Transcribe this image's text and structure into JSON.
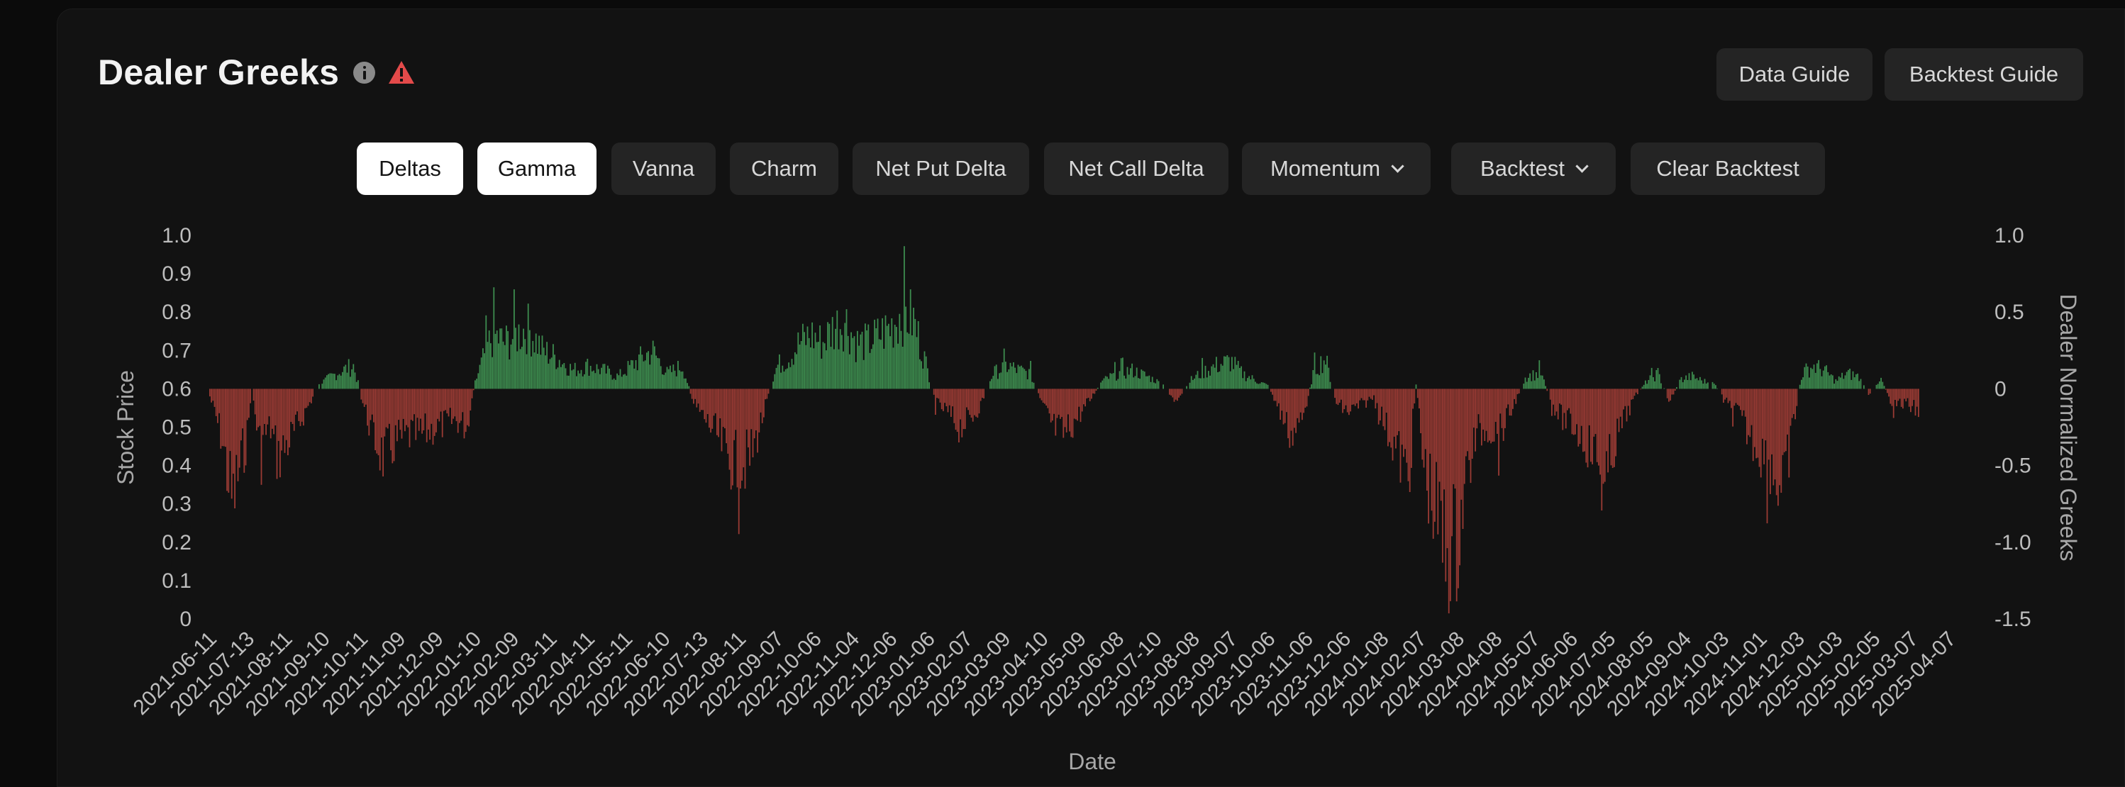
{
  "header": {
    "title": "Dealer Greeks",
    "info_icon": "info-icon",
    "warning_icon": "warning-icon",
    "warning_color": "#e34a4a",
    "data_guide_label": "Data Guide",
    "backtest_guide_label": "Backtest Guide"
  },
  "toolbar": {
    "buttons": [
      {
        "label": "Deltas",
        "active": true
      },
      {
        "label": "Gamma",
        "active": true
      },
      {
        "label": "Vanna",
        "active": false
      },
      {
        "label": "Charm",
        "active": false
      },
      {
        "label": "Net Put Delta",
        "active": false
      },
      {
        "label": "Net Call Delta",
        "active": false
      },
      {
        "label": "Momentum",
        "active": false,
        "dropdown": true
      },
      {
        "label": "Backtest",
        "active": false,
        "dropdown": true
      },
      {
        "label": "Clear Backtest",
        "active": false
      }
    ]
  },
  "chart_data": {
    "type": "bar",
    "title": "",
    "xlabel": "Date",
    "ylabel_left": "Stock Price",
    "ylabel_right": "Dealer Normalized Greeks",
    "y_left_ticks": [
      "1.0",
      "0.9",
      "0.8",
      "0.7",
      "0.6",
      "0.5",
      "0.4",
      "0.3",
      "0.2",
      "0.1",
      "0"
    ],
    "y_left_range": [
      0,
      1.0
    ],
    "y_right_ticks": [
      "1.0",
      "0.5",
      "0",
      "-0.5",
      "-1.0",
      "-1.5"
    ],
    "y_right_range": [
      -1.5,
      1.0
    ],
    "x_ticks": [
      "2021-06-11",
      "2021-07-13",
      "2021-08-11",
      "2021-09-10",
      "2021-10-11",
      "2021-11-09",
      "2021-12-09",
      "2022-01-10",
      "2022-02-09",
      "2022-03-11",
      "2022-04-11",
      "2022-05-11",
      "2022-06-10",
      "2022-07-13",
      "2022-08-11",
      "2022-09-07",
      "2022-10-06",
      "2022-11-04",
      "2022-12-06",
      "2023-01-06",
      "2023-02-07",
      "2023-03-09",
      "2023-04-10",
      "2023-05-09",
      "2023-06-08",
      "2023-07-10",
      "2023-08-08",
      "2023-09-07",
      "2023-10-06",
      "2023-11-06",
      "2023-12-06",
      "2024-01-08",
      "2024-02-07",
      "2024-03-08",
      "2024-04-08",
      "2024-05-07",
      "2024-06-06",
      "2024-07-05",
      "2024-08-05",
      "2024-09-04",
      "2024-10-03",
      "2024-11-01",
      "2024-12-03",
      "2025-01-03",
      "2025-02-05",
      "2025-03-07",
      "2025-04-07"
    ],
    "series_colors": {
      "positive": "#3d8c4f",
      "negative": "#9a3b34"
    },
    "grid": false,
    "legend": "none",
    "anchors": [
      [
        0,
        -0.05
      ],
      [
        0.3,
        -0.3
      ],
      [
        0.6,
        -0.75
      ],
      [
        0.8,
        -0.5
      ],
      [
        1.0,
        -0.3
      ],
      [
        1.1,
        0.02
      ],
      [
        1.3,
        -0.35
      ],
      [
        1.6,
        -0.25
      ],
      [
        1.8,
        -0.45
      ],
      [
        2.2,
        -0.3
      ],
      [
        2.9,
        0.03
      ],
      [
        3.2,
        0.08
      ],
      [
        3.5,
        0.12
      ],
      [
        3.8,
        0.15
      ],
      [
        4.0,
        -0.05
      ],
      [
        4.3,
        -0.3
      ],
      [
        4.6,
        -0.45
      ],
      [
        4.9,
        -0.35
      ],
      [
        5.3,
        -0.3
      ],
      [
        5.6,
        -0.3
      ],
      [
        6.0,
        -0.25
      ],
      [
        6.5,
        -0.2
      ],
      [
        6.8,
        -0.25
      ],
      [
        7.0,
        0.03
      ],
      [
        7.3,
        0.25
      ],
      [
        7.5,
        0.35
      ],
      [
        7.8,
        0.3
      ],
      [
        8.1,
        0.35
      ],
      [
        8.4,
        0.4
      ],
      [
        8.8,
        0.25
      ],
      [
        9.2,
        0.2
      ],
      [
        9.6,
        0.12
      ],
      [
        10.0,
        0.15
      ],
      [
        10.4,
        0.12
      ],
      [
        10.8,
        0.08
      ],
      [
        11.3,
        0.18
      ],
      [
        11.7,
        0.25
      ],
      [
        12.1,
        0.1
      ],
      [
        12.5,
        0.15
      ],
      [
        12.8,
        -0.1
      ],
      [
        13.1,
        -0.2
      ],
      [
        13.4,
        -0.3
      ],
      [
        13.7,
        -0.45
      ],
      [
        14.0,
        -0.5
      ],
      [
        14.3,
        -0.45
      ],
      [
        14.6,
        -0.2
      ],
      [
        15.0,
        0.15
      ],
      [
        15.3,
        0.2
      ],
      [
        15.6,
        0.3
      ],
      [
        15.9,
        0.35
      ],
      [
        16.2,
        0.3
      ],
      [
        16.5,
        0.4
      ],
      [
        16.8,
        0.45
      ],
      [
        17.1,
        0.3
      ],
      [
        17.4,
        0.3
      ],
      [
        17.7,
        0.35
      ],
      [
        18.0,
        0.4
      ],
      [
        18.3,
        0.5
      ],
      [
        18.6,
        0.45
      ],
      [
        18.9,
        0.2
      ],
      [
        19.2,
        -0.1
      ],
      [
        19.5,
        -0.15
      ],
      [
        19.8,
        -0.25
      ],
      [
        20.1,
        -0.2
      ],
      [
        20.4,
        -0.1
      ],
      [
        20.7,
        0.1
      ],
      [
        21.1,
        0.15
      ],
      [
        21.4,
        0.12
      ],
      [
        21.7,
        0.1
      ],
      [
        22.0,
        -0.1
      ],
      [
        22.3,
        -0.25
      ],
      [
        22.6,
        -0.3
      ],
      [
        22.9,
        -0.2
      ],
      [
        23.2,
        -0.1
      ],
      [
        23.6,
        0.05
      ],
      [
        24.0,
        0.1
      ],
      [
        24.4,
        0.12
      ],
      [
        24.8,
        0.08
      ],
      [
        25.2,
        0.03
      ],
      [
        25.6,
        -0.1
      ],
      [
        25.9,
        0.05
      ],
      [
        26.2,
        0.1
      ],
      [
        26.6,
        0.15
      ],
      [
        27.0,
        0.18
      ],
      [
        27.3,
        0.1
      ],
      [
        27.7,
        0.05
      ],
      [
        28.0,
        0.02
      ],
      [
        28.3,
        -0.15
      ],
      [
        28.6,
        -0.3
      ],
      [
        28.9,
        -0.2
      ],
      [
        29.2,
        0.12
      ],
      [
        29.5,
        0.2
      ],
      [
        29.8,
        -0.1
      ],
      [
        30.1,
        -0.15
      ],
      [
        30.5,
        -0.1
      ],
      [
        30.8,
        -0.05
      ],
      [
        31.1,
        -0.25
      ],
      [
        31.4,
        -0.4
      ],
      [
        31.7,
        -0.6
      ],
      [
        31.9,
        0.03
      ],
      [
        32.1,
        -0.5
      ],
      [
        32.4,
        -0.8
      ],
      [
        32.7,
        -1.05
      ],
      [
        33.0,
        -1.0
      ],
      [
        33.2,
        -0.6
      ],
      [
        33.5,
        -0.3
      ],
      [
        33.8,
        -0.25
      ],
      [
        34.1,
        -0.3
      ],
      [
        34.4,
        -0.15
      ],
      [
        34.8,
        0.08
      ],
      [
        35.2,
        0.1
      ],
      [
        35.5,
        -0.1
      ],
      [
        35.8,
        -0.2
      ],
      [
        36.1,
        -0.25
      ],
      [
        36.4,
        -0.35
      ],
      [
        36.7,
        -0.45
      ],
      [
        36.9,
        -0.7
      ],
      [
        37.1,
        -0.4
      ],
      [
        37.4,
        -0.2
      ],
      [
        37.7,
        -0.05
      ],
      [
        38.0,
        0.05
      ],
      [
        38.3,
        0.1
      ],
      [
        38.6,
        -0.08
      ],
      [
        38.9,
        0.06
      ],
      [
        39.2,
        0.08
      ],
      [
        39.5,
        0.05
      ],
      [
        39.8,
        0.03
      ],
      [
        40.1,
        -0.1
      ],
      [
        40.4,
        -0.15
      ],
      [
        40.7,
        -0.3
      ],
      [
        41.0,
        -0.4
      ],
      [
        41.3,
        -0.5
      ],
      [
        41.6,
        -0.7
      ],
      [
        41.9,
        -0.2
      ],
      [
        42.1,
        0.1
      ],
      [
        42.4,
        0.15
      ],
      [
        42.7,
        0.12
      ],
      [
        43.0,
        0.05
      ],
      [
        43.3,
        0.1
      ],
      [
        43.6,
        0.08
      ],
      [
        43.9,
        -0.05
      ],
      [
        44.2,
        0.06
      ],
      [
        44.5,
        -0.1
      ],
      [
        44.9,
        -0.1
      ],
      [
        45.2,
        -0.15
      ]
    ]
  }
}
